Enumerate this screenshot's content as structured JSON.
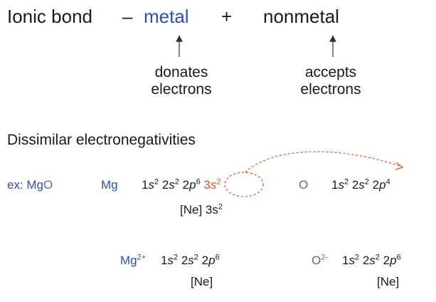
{
  "header": {
    "ionic_bond": "Ionic bond",
    "dash": "–",
    "metal": "metal",
    "plus": "+",
    "nonmetal": "nonmetal"
  },
  "labels": {
    "metal_line1": "donates",
    "metal_line2": "electrons",
    "nonmetal_line1": "accepts",
    "nonmetal_line2": "electrons"
  },
  "heading": "Dissimilar electronegativities",
  "example": {
    "prefix": "ex: Mg",
    "prefix_o": "O",
    "mg_symbol": "Mg",
    "o_symbol": "O",
    "mg_ion_symbol": "Mg",
    "mg_ion_charge": "2+",
    "o_ion_symbol": "O",
    "o_ion_charge": "2-",
    "ne_core_mg": "[Ne] 3s",
    "ne_core_mg_sup": "2",
    "ne_mg_ion": "[Ne]",
    "ne_o_ion": "[Ne]"
  },
  "colors": {
    "blue": "#2b4fb8",
    "orange": "#e0502a",
    "text": "#1a1a1a"
  }
}
